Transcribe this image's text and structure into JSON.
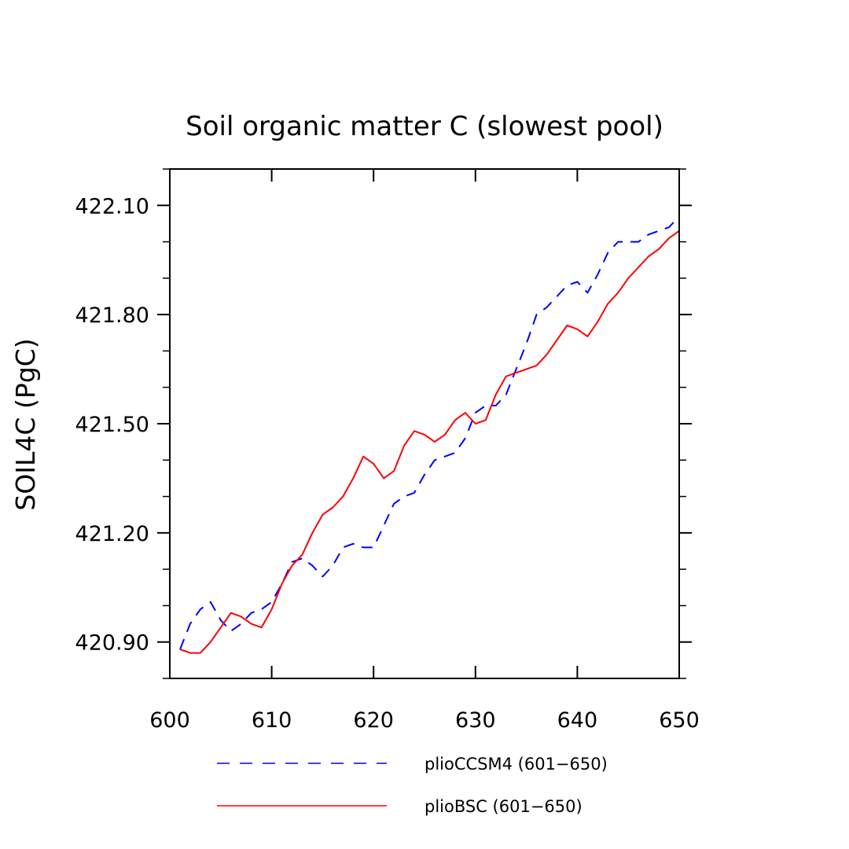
{
  "chart_data": {
    "type": "line",
    "title": "Soil organic matter C (slowest pool)",
    "xlabel": "",
    "ylabel": "SOIL4C   (PgC)",
    "xlim": [
      600,
      650
    ],
    "ylim": [
      420.8,
      422.2
    ],
    "x_ticks": [
      600,
      610,
      620,
      630,
      640,
      650
    ],
    "x_tick_labels": [
      "600",
      "610",
      "620",
      "630",
      "640",
      "650"
    ],
    "y_ticks": [
      420.9,
      421.2,
      421.5,
      421.8,
      422.1
    ],
    "y_tick_labels": [
      "420.90",
      "421.20",
      "421.50",
      "421.80",
      "422.10"
    ],
    "grid": false,
    "legend_position": "bottom",
    "x": [
      601,
      602,
      603,
      604,
      605,
      606,
      607,
      608,
      609,
      610,
      611,
      612,
      613,
      614,
      615,
      616,
      617,
      618,
      619,
      620,
      621,
      622,
      623,
      624,
      625,
      626,
      627,
      628,
      629,
      630,
      631,
      632,
      633,
      634,
      635,
      636,
      637,
      638,
      639,
      640,
      641,
      642,
      643,
      644,
      645,
      646,
      647,
      648,
      649,
      650
    ],
    "series": [
      {
        "name": "plioCCSM4 (601−650)",
        "color": "#0000ff",
        "style": "dashed",
        "values": [
          420.88,
          420.95,
          420.99,
          421.01,
          420.96,
          420.93,
          420.95,
          420.98,
          420.99,
          421.01,
          421.06,
          421.12,
          421.13,
          421.11,
          421.08,
          421.11,
          421.16,
          421.17,
          421.16,
          421.16,
          421.22,
          421.28,
          421.3,
          421.31,
          421.36,
          421.4,
          421.41,
          421.42,
          421.46,
          421.53,
          421.55,
          421.55,
          421.58,
          421.65,
          421.72,
          421.8,
          421.82,
          421.85,
          421.88,
          421.89,
          421.86,
          421.91,
          421.97,
          422.0,
          422.0,
          422.0,
          422.02,
          422.03,
          422.04,
          422.07
        ]
      },
      {
        "name": "plioBSC (601−650)",
        "color": "#ff0000",
        "style": "solid",
        "values": [
          420.88,
          420.87,
          420.87,
          420.9,
          420.94,
          420.98,
          420.97,
          420.95,
          420.94,
          420.99,
          421.06,
          421.11,
          421.14,
          421.2,
          421.25,
          421.27,
          421.3,
          421.35,
          421.41,
          421.39,
          421.35,
          421.37,
          421.44,
          421.48,
          421.47,
          421.45,
          421.47,
          421.51,
          421.53,
          421.5,
          421.51,
          421.58,
          421.63,
          421.64,
          421.65,
          421.66,
          421.69,
          421.73,
          421.77,
          421.76,
          421.74,
          421.78,
          421.83,
          421.86,
          421.9,
          421.93,
          421.96,
          421.98,
          422.01,
          422.03
        ]
      }
    ]
  }
}
